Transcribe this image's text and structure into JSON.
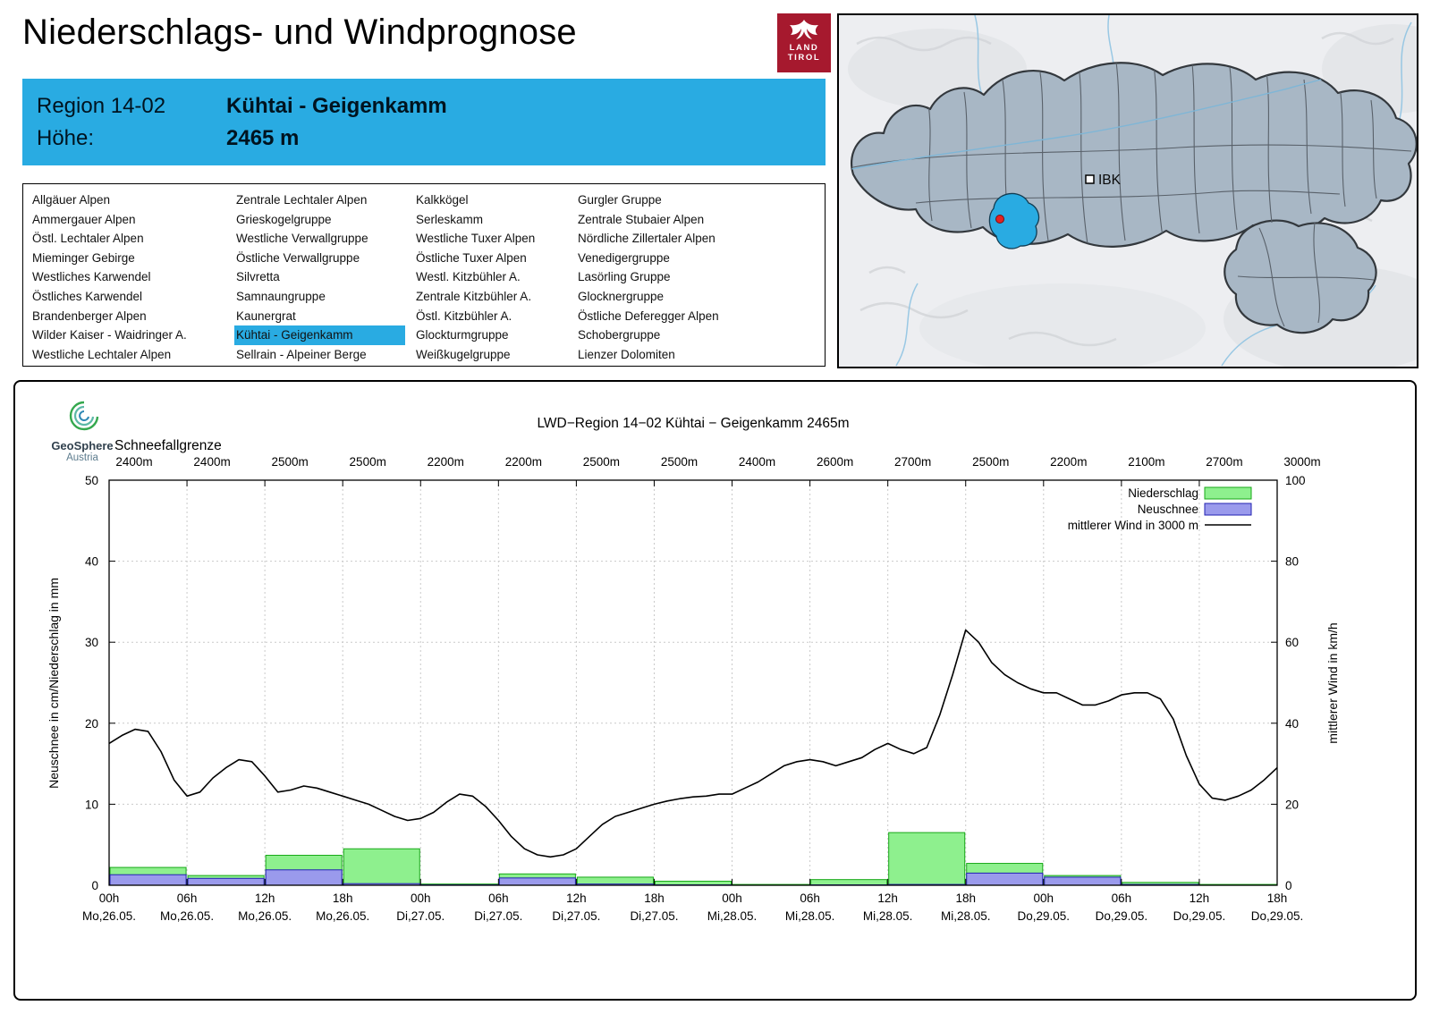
{
  "header": {
    "title": "Niederschlags- und Windprognose",
    "logo": {
      "line1": "LAND",
      "line2": "TIROL",
      "color": "#a6192e"
    }
  },
  "region_info": {
    "region_label": "Region 14-02",
    "region_name": "Kühtai - Geigenkamm",
    "elevation_label": "Höhe:",
    "elevation_value": "2465 m",
    "accent_color": "#29abe2"
  },
  "region_list": {
    "selected": "Kühtai - Geigenkamm",
    "columns": [
      [
        "Allgäuer Alpen",
        "Ammergauer Alpen",
        "Östl. Lechtaler Alpen",
        "Mieminger Gebirge",
        "Westliches Karwendel",
        "Östliches Karwendel",
        "Brandenberger Alpen",
        "Wilder Kaiser - Waidringer A.",
        "Westliche Lechtaler Alpen"
      ],
      [
        "Zentrale Lechtaler Alpen",
        "Grieskogelgruppe",
        "Westliche Verwallgruppe",
        "Östliche Verwallgruppe",
        "Silvretta",
        "Samnaungruppe",
        "Kaunergrat",
        "Kühtai - Geigenkamm",
        "Sellrain - Alpeiner Berge"
      ],
      [
        "Kalkkögel",
        "Serleskamm",
        "Westliche Tuxer Alpen",
        "Östliche Tuxer Alpen",
        "Westl. Kitzbühler A.",
        "Zentrale Kitzbühler A.",
        "Östl. Kitzbühler A.",
        "Glockturmgruppe",
        "Weißkugelgruppe"
      ],
      [
        "Gurgler Gruppe",
        "Zentrale Stubaier Alpen",
        "Nördliche Zillertaler Alpen",
        "Venedigergruppe",
        "Lasörling Gruppe",
        "Glocknergruppe",
        "Östliche Deferegger Alpen",
        "Schobergruppe",
        "Lienzer Dolomiten"
      ]
    ]
  },
  "map": {
    "city_label": "IBK",
    "highlight_color": "#29abe2",
    "region_fill": "#a8b7c5"
  },
  "chart": {
    "source_logo": {
      "name": "GeoSphere",
      "sub": "Austria"
    },
    "title": "LWD−Region 14−02 Kühtai − Geigenkamm 2465m",
    "snowline_label": "Schneefallgrenze",
    "y_left_label": "Neuschnee in cm/Niederschlag in mm",
    "y_right_label": "mittlerer Wind in km/h",
    "legend": [
      {
        "label": "Niederschlag",
        "type": "box",
        "fill": "#8ef08e",
        "stroke": "#18a818"
      },
      {
        "label": "Neuschnee",
        "type": "box",
        "fill": "#9a9aec",
        "stroke": "#2222b2"
      },
      {
        "label": "mittlerer Wind in 3000 m",
        "type": "line",
        "stroke": "#000000"
      }
    ]
  },
  "chart_data": {
    "type": "composite-bar-line",
    "ylim_left": [
      0,
      50
    ],
    "ylim_right": [
      0,
      100
    ],
    "ytick_step_left": 10,
    "ytick_step_right": 20,
    "grid": true,
    "snowline_m": [
      2400,
      2400,
      2500,
      2500,
      2200,
      2200,
      2500,
      2500,
      2400,
      2600,
      2700,
      2500,
      2200,
      2100,
      2700,
      3000
    ],
    "x_ticks": [
      {
        "time": "00h",
        "date": "Mo,26.05."
      },
      {
        "time": "06h",
        "date": "Mo,26.05."
      },
      {
        "time": "12h",
        "date": "Mo,26.05."
      },
      {
        "time": "18h",
        "date": "Mo,26.05."
      },
      {
        "time": "00h",
        "date": "Di,27.05."
      },
      {
        "time": "06h",
        "date": "Di,27.05."
      },
      {
        "time": "12h",
        "date": "Di,27.05."
      },
      {
        "time": "18h",
        "date": "Di,27.05."
      },
      {
        "time": "00h",
        "date": "Mi,28.05."
      },
      {
        "time": "06h",
        "date": "Mi,28.05."
      },
      {
        "time": "12h",
        "date": "Mi,28.05."
      },
      {
        "time": "18h",
        "date": "Mi,28.05."
      },
      {
        "time": "00h",
        "date": "Do,29.05."
      },
      {
        "time": "06h",
        "date": "Do,29.05."
      },
      {
        "time": "12h",
        "date": "Do,29.05."
      },
      {
        "time": "18h",
        "date": "Do,29.05."
      }
    ],
    "bars_niederschlag_mm": [
      2.2,
      1.2,
      3.7,
      4.5,
      0.15,
      1.4,
      1.0,
      0.5,
      0.1,
      0.7,
      6.5,
      2.7,
      1.2,
      0.35,
      0.1
    ],
    "bars_neuschnee_cm": [
      1.3,
      0.85,
      1.9,
      0.2,
      0.05,
      0.9,
      0.15,
      0.05,
      0,
      0.05,
      0.1,
      1.5,
      1.0,
      0.1,
      0
    ],
    "wind_kmh_points": [
      [
        0,
        35
      ],
      [
        1,
        37
      ],
      [
        2,
        38.5
      ],
      [
        3,
        38
      ],
      [
        4,
        33
      ],
      [
        5,
        26
      ],
      [
        6,
        22
      ],
      [
        7,
        23
      ],
      [
        8,
        26.5
      ],
      [
        9,
        29
      ],
      [
        10,
        31
      ],
      [
        11,
        30.5
      ],
      [
        12,
        27
      ],
      [
        13,
        23
      ],
      [
        14,
        23.5
      ],
      [
        15,
        24.5
      ],
      [
        16,
        24
      ],
      [
        17,
        23
      ],
      [
        18,
        22
      ],
      [
        19,
        21
      ],
      [
        20,
        20
      ],
      [
        21,
        18.5
      ],
      [
        22,
        17
      ],
      [
        23,
        16
      ],
      [
        24,
        16.5
      ],
      [
        25,
        18
      ],
      [
        26,
        20.5
      ],
      [
        27,
        22.5
      ],
      [
        28,
        22
      ],
      [
        29,
        19.5
      ],
      [
        30,
        16
      ],
      [
        31,
        12
      ],
      [
        32,
        9
      ],
      [
        33,
        7.5
      ],
      [
        34,
        7
      ],
      [
        35,
        7.5
      ],
      [
        36,
        9
      ],
      [
        37,
        12
      ],
      [
        38,
        15
      ],
      [
        39,
        17
      ],
      [
        40,
        18
      ],
      [
        41,
        19
      ],
      [
        42,
        20
      ],
      [
        43,
        20.8
      ],
      [
        44,
        21.4
      ],
      [
        45,
        21.8
      ],
      [
        46,
        22
      ],
      [
        47,
        22.5
      ],
      [
        48,
        22.5
      ],
      [
        49,
        24
      ],
      [
        50,
        25.5
      ],
      [
        51,
        27.5
      ],
      [
        52,
        29.5
      ],
      [
        53,
        30.5
      ],
      [
        54,
        31
      ],
      [
        55,
        30.5
      ],
      [
        56,
        29.5
      ],
      [
        57,
        30.5
      ],
      [
        58,
        31.5
      ],
      [
        59,
        33.5
      ],
      [
        60,
        35
      ],
      [
        61,
        33.5
      ],
      [
        62,
        32.5
      ],
      [
        63,
        34
      ],
      [
        64,
        42
      ],
      [
        65,
        52
      ],
      [
        66,
        63
      ],
      [
        67,
        60
      ],
      [
        68,
        55
      ],
      [
        69,
        52
      ],
      [
        70,
        50
      ],
      [
        71,
        48.5
      ],
      [
        72,
        47.5
      ],
      [
        73,
        47.5
      ],
      [
        74,
        46
      ],
      [
        75,
        44.5
      ],
      [
        76,
        44.5
      ],
      [
        77,
        45.5
      ],
      [
        78,
        47
      ],
      [
        79,
        47.5
      ],
      [
        80,
        47.5
      ],
      [
        81,
        46
      ],
      [
        82,
        41
      ],
      [
        83,
        32
      ],
      [
        84,
        25
      ],
      [
        85,
        21.5
      ],
      [
        86,
        21
      ],
      [
        87,
        22
      ],
      [
        88,
        23.5
      ],
      [
        89,
        26
      ],
      [
        90,
        29
      ]
    ]
  }
}
